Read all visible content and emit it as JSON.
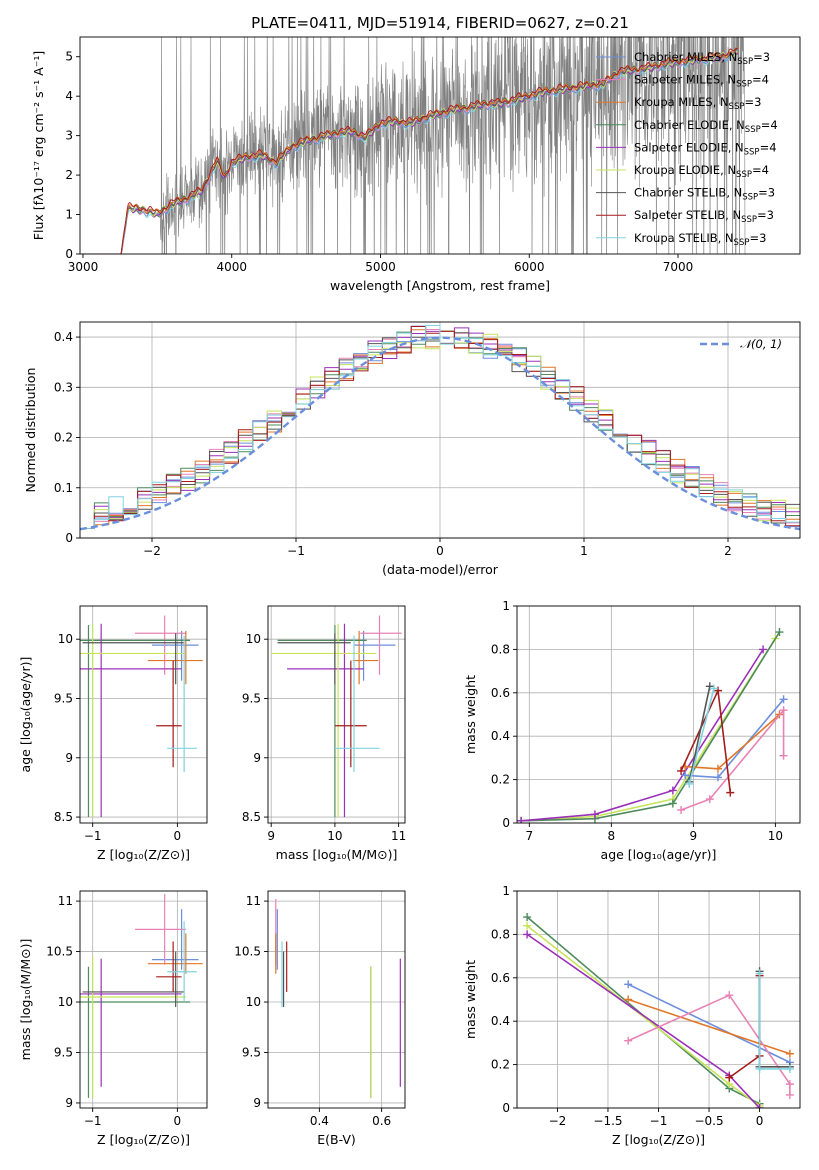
{
  "figure": {
    "title": "PLATE=0411, MJD=51914, FIBERID=0627, z=0.21"
  },
  "colors": {
    "Chabrier MILES": "#6d8fdc",
    "Salpeter MILES": "#e882b4",
    "Kroupa MILES": "#e0772a",
    "Chabrier ELODIE": "#4d8a5c",
    "Salpeter ELODIE": "#9b30b8",
    "Kroupa ELODIE": "#c6e35a",
    "Chabrier STELIB": "#555555",
    "Salpeter STELIB": "#a51c1c",
    "Kroupa STELIB": "#7fd3e0",
    "observed": "#808080",
    "normal": "#6a8fdc"
  },
  "chart_data": [
    {
      "id": "spectrum",
      "type": "line",
      "xlabel": "wavelength [Angstrom, rest frame]",
      "ylabel": "Flux [fλ10⁻¹⁷ erg cm⁻² s⁻¹ A⁻¹]",
      "xlim": [
        2980,
        7820
      ],
      "ylim": [
        0,
        5.5
      ],
      "xticks": [
        3000,
        4000,
        5000,
        6000,
        7000
      ],
      "yticks": [
        0,
        1,
        2,
        3,
        4,
        5
      ],
      "grid": false,
      "legend_position": "right",
      "legend": [
        {
          "label": "Chabrier MILES, N",
          "sub": "SSP",
          "suffix": "=3"
        },
        {
          "label": "Salpeter MILES, N",
          "sub": "SSP",
          "suffix": "=4"
        },
        {
          "label": "Kroupa MILES, N",
          "sub": "SSP",
          "suffix": "=3"
        },
        {
          "label": "Chabrier ELODIE, N",
          "sub": "SSP",
          "suffix": "=4"
        },
        {
          "label": "Salpeter ELODIE, N",
          "sub": "SSP",
          "suffix": "=4"
        },
        {
          "label": "Kroupa ELODIE, N",
          "sub": "SSP",
          "suffix": "=4"
        },
        {
          "label": "Chabrier STELIB, N",
          "sub": "SSP",
          "suffix": "=3"
        },
        {
          "label": "Salpeter STELIB, N",
          "sub": "SSP",
          "suffix": "=3"
        },
        {
          "label": "Kroupa STELIB, N",
          "sub": "SSP",
          "suffix": "=3"
        }
      ],
      "model_continuum": {
        "x": [
          3260,
          3300,
          3400,
          3500,
          3600,
          3700,
          3800,
          3900,
          3950,
          4000,
          4100,
          4200,
          4300,
          4400,
          4500,
          4600,
          4700,
          4800,
          4900,
          5000,
          5100,
          5200,
          5300,
          5400,
          5500,
          5600,
          5700,
          5800,
          5900,
          6000,
          6100,
          6200,
          6300,
          6400,
          6500,
          6600,
          6700,
          6800,
          6900,
          7000,
          7100,
          7200,
          7300,
          7400,
          7500
        ],
        "y": [
          0.05,
          1.15,
          1.12,
          1.0,
          1.25,
          1.4,
          1.6,
          2.35,
          1.9,
          2.3,
          2.45,
          2.5,
          2.3,
          2.7,
          2.85,
          2.95,
          3.05,
          3.1,
          2.95,
          3.3,
          3.35,
          3.3,
          3.45,
          3.55,
          3.65,
          3.7,
          3.8,
          3.8,
          3.9,
          4.0,
          4.1,
          4.15,
          4.2,
          4.25,
          4.3,
          4.6,
          4.65,
          4.7,
          4.8,
          4.85,
          4.9,
          4.95,
          5.0,
          5.1,
          5.15
        ]
      },
      "observed_range": [
        3520,
        7450
      ]
    },
    {
      "id": "residuals",
      "type": "bar",
      "xlabel": "(data-model)/error",
      "ylabel": "Normed distribution",
      "xlim": [
        -2.5,
        2.5
      ],
      "ylim": [
        0,
        0.43
      ],
      "xticks": [
        -2,
        -1,
        0,
        1,
        2
      ],
      "yticks": [
        0.0,
        0.1,
        0.2,
        0.3,
        0.4
      ],
      "grid": true,
      "legend_position": "top-right",
      "bin_width": 0.1,
      "reference_curve": {
        "label": "𝒩(0, 1)",
        "mean": 0,
        "sigma": 1
      }
    },
    {
      "id": "age-vs-Z",
      "type": "scatter",
      "xlabel": "Z [log₁₀(Z/Z⊙)]",
      "ylabel": "age  [log₁₀(age/yr)]",
      "xlim": [
        -1.15,
        0.35
      ],
      "ylim": [
        8.45,
        10.28
      ],
      "xticks": [
        -1,
        0
      ],
      "yticks": [
        8.5,
        9.0,
        9.5,
        10.0
      ],
      "grid": true,
      "points": [
        {
          "model": "Chabrier MILES",
          "x": 0.05,
          "y": 9.95,
          "xerr": [
            0.35,
            0.2
          ],
          "yerr": [
            0.3,
            0.12
          ]
        },
        {
          "model": "Salpeter MILES",
          "x": -0.15,
          "y": 10.05,
          "xerr": [
            0.35,
            0.25
          ],
          "yerr": [
            0.35,
            0.15
          ]
        },
        {
          "model": "Kroupa MILES",
          "x": 0.1,
          "y": 9.82,
          "xerr": [
            0.45,
            0.2
          ],
          "yerr": [
            0.2,
            0.25
          ]
        },
        {
          "model": "Chabrier ELODIE",
          "x": -1.05,
          "y": 9.99,
          "xerr": [
            0.1,
            1.2
          ],
          "yerr": [
            1.49,
            0.13
          ]
        },
        {
          "model": "Salpeter ELODIE",
          "x": -0.9,
          "y": 9.75,
          "xerr": [
            0.25,
            0.95
          ],
          "yerr": [
            1.25,
            0.38
          ]
        },
        {
          "model": "Kroupa ELODIE",
          "x": -1.0,
          "y": 9.88,
          "xerr": [
            0.15,
            1.1
          ],
          "yerr": [
            1.38,
            0.25
          ]
        },
        {
          "model": "Chabrier STELIB",
          "x": -0.02,
          "y": 9.97,
          "xerr": [
            1.1,
            0.1
          ],
          "yerr": [
            0.35,
            0.08
          ]
        },
        {
          "model": "Salpeter STELIB",
          "x": -0.05,
          "y": 9.27,
          "xerr": [
            0.2,
            0.1
          ],
          "yerr": [
            0.35,
            0.55
          ]
        },
        {
          "model": "Kroupa STELIB",
          "x": 0.08,
          "y": 9.08,
          "xerr": [
            0.2,
            0.15
          ],
          "yerr": [
            0.2,
            0.95
          ]
        }
      ]
    },
    {
      "id": "age-vs-mass",
      "type": "scatter",
      "xlabel": "mass [log₁₀(M/M⊙)]",
      "ylabel": "",
      "xlim": [
        8.95,
        11.1
      ],
      "ylim": [
        8.45,
        10.28
      ],
      "xticks": [
        9,
        10,
        11
      ],
      "yticks": [
        8.5,
        9.0,
        9.5,
        10.0
      ],
      "grid": true,
      "points": [
        {
          "model": "Chabrier MILES",
          "x": 10.45,
          "y": 9.95,
          "xerr": [
            0.15,
            0.5
          ],
          "yerr": [
            0.3,
            0.12
          ]
        },
        {
          "model": "Salpeter MILES",
          "x": 10.7,
          "y": 10.05,
          "xerr": [
            0.3,
            0.35
          ],
          "yerr": [
            0.35,
            0.15
          ]
        },
        {
          "model": "Kroupa MILES",
          "x": 10.38,
          "y": 9.82,
          "xerr": [
            0.1,
            0.3
          ],
          "yerr": [
            0.2,
            0.25
          ]
        },
        {
          "model": "Chabrier ELODIE",
          "x": 10.0,
          "y": 9.99,
          "xerr": [
            0.9,
            0.5
          ],
          "yerr": [
            1.49,
            0.13
          ]
        },
        {
          "model": "Salpeter ELODIE",
          "x": 10.15,
          "y": 9.75,
          "xerr": [
            0.9,
            0.3
          ],
          "yerr": [
            1.25,
            0.38
          ]
        },
        {
          "model": "Kroupa ELODIE",
          "x": 10.05,
          "y": 9.88,
          "xerr": [
            1.05,
            0.6
          ],
          "yerr": [
            1.38,
            0.25
          ]
        },
        {
          "model": "Chabrier STELIB",
          "x": 10.0,
          "y": 9.97,
          "xerr": [
            0.9,
            0.25
          ],
          "yerr": [
            0.35,
            0.08
          ]
        },
        {
          "model": "Salpeter STELIB",
          "x": 10.25,
          "y": 9.27,
          "xerr": [
            0.25,
            0.25
          ],
          "yerr": [
            0.35,
            0.55
          ]
        },
        {
          "model": "Kroupa STELIB",
          "x": 10.3,
          "y": 9.08,
          "xerr": [
            0.3,
            0.4
          ],
          "yerr": [
            0.2,
            0.95
          ]
        }
      ]
    },
    {
      "id": "mass-weight-vs-age",
      "type": "line",
      "xlabel": "age  [log₁₀(age/yr)]",
      "ylabel": "mass weight",
      "xlim": [
        6.85,
        10.3
      ],
      "ylim": [
        0,
        1.0
      ],
      "xticks": [
        7,
        8,
        9,
        10
      ],
      "yticks": [
        0.0,
        0.2,
        0.4,
        0.6,
        0.8,
        1.0
      ],
      "grid": true,
      "series": [
        {
          "model": "Kroupa ELODIE",
          "x": [
            6.9,
            7.8,
            8.75,
            10.0
          ],
          "y": [
            0.01,
            0.03,
            0.11,
            0.85
          ]
        },
        {
          "model": "Chabrier ELODIE",
          "x": [
            6.9,
            7.8,
            8.75,
            10.05
          ],
          "y": [
            0.01,
            0.02,
            0.09,
            0.88
          ]
        },
        {
          "model": "Salpeter ELODIE",
          "x": [
            6.9,
            7.8,
            8.75,
            9.85
          ],
          "y": [
            0.01,
            0.04,
            0.15,
            0.8
          ]
        },
        {
          "model": "Chabrier MILES",
          "x": [
            8.9,
            9.3,
            10.1
          ],
          "y": [
            0.22,
            0.21,
            0.57
          ]
        },
        {
          "model": "Kroupa MILES",
          "x": [
            8.9,
            9.3,
            10.05
          ],
          "y": [
            0.26,
            0.25,
            0.5
          ]
        },
        {
          "model": "Salpeter MILES",
          "x": [
            8.85,
            9.2,
            10.1,
            10.1
          ],
          "y": [
            0.06,
            0.11,
            0.52,
            0.31
          ]
        },
        {
          "model": "Salpeter STELIB",
          "x": [
            8.85,
            9.3,
            9.45
          ],
          "y": [
            0.24,
            0.61,
            0.14
          ]
        },
        {
          "model": "Chabrier STELIB",
          "x": [
            8.95,
            9.2
          ],
          "y": [
            0.19,
            0.63
          ]
        },
        {
          "model": "Kroupa STELIB",
          "x": [
            8.95,
            9.25
          ],
          "y": [
            0.18,
            0.62
          ]
        }
      ]
    },
    {
      "id": "mass-vs-Z",
      "type": "scatter",
      "xlabel": "Z [log₁₀(Z/Z⊙)]",
      "ylabel": "mass [log₁₀(M/M⊙)]",
      "xlim": [
        -1.15,
        0.35
      ],
      "ylim": [
        8.95,
        11.1
      ],
      "xticks": [
        -1,
        0
      ],
      "yticks": [
        9.0,
        9.5,
        10.0,
        10.5,
        11.0
      ],
      "grid": true,
      "points": [
        {
          "model": "Chabrier MILES",
          "x": 0.05,
          "y": 10.42,
          "xerr": [
            0.35,
            0.2
          ],
          "yerr": [
            0.1,
            0.5
          ]
        },
        {
          "model": "Salpeter MILES",
          "x": -0.15,
          "y": 10.72,
          "xerr": [
            0.35,
            0.25
          ],
          "yerr": [
            0.35,
            0.35
          ]
        },
        {
          "model": "Kroupa MILES",
          "x": 0.1,
          "y": 10.38,
          "xerr": [
            0.45,
            0.2
          ],
          "yerr": [
            0.1,
            0.3
          ]
        },
        {
          "model": "Chabrier ELODIE",
          "x": -1.05,
          "y": 10.0,
          "xerr": [
            0.1,
            1.2
          ],
          "yerr": [
            0.95,
            0.35
          ]
        },
        {
          "model": "Salpeter ELODIE",
          "x": -0.9,
          "y": 10.08,
          "xerr": [
            0.25,
            0.95
          ],
          "yerr": [
            0.92,
            0.35
          ]
        },
        {
          "model": "Kroupa ELODIE",
          "x": -1.0,
          "y": 10.05,
          "xerr": [
            0.15,
            1.1
          ],
          "yerr": [
            1.0,
            0.4
          ]
        },
        {
          "model": "Chabrier STELIB",
          "x": -0.02,
          "y": 10.1,
          "xerr": [
            1.1,
            0.1
          ],
          "yerr": [
            0.15,
            0.4
          ]
        },
        {
          "model": "Salpeter STELIB",
          "x": -0.05,
          "y": 10.25,
          "xerr": [
            0.2,
            0.1
          ],
          "yerr": [
            0.15,
            0.35
          ]
        },
        {
          "model": "Kroupa STELIB",
          "x": 0.08,
          "y": 10.3,
          "xerr": [
            0.2,
            0.15
          ],
          "yerr": [
            0.3,
            0.5
          ]
        }
      ]
    },
    {
      "id": "mass-vs-EBV",
      "type": "scatter",
      "xlabel": "E(B-V)",
      "ylabel": "",
      "xlim": [
        0.235,
        0.675
      ],
      "ylim": [
        8.95,
        11.1
      ],
      "xticks": [
        0.4,
        0.6
      ],
      "yticks": [
        9.0,
        9.5,
        10.0,
        10.5,
        11.0
      ],
      "grid": true,
      "points": [
        {
          "model": "Chabrier MILES",
          "x": 0.265,
          "y": 10.42,
          "xerr": [
            0,
            0
          ],
          "yerr": [
            0.1,
            0.5
          ]
        },
        {
          "model": "Salpeter MILES",
          "x": 0.26,
          "y": 10.72,
          "xerr": [
            0,
            0
          ],
          "yerr": [
            0.35,
            0.3
          ]
        },
        {
          "model": "Kroupa MILES",
          "x": 0.26,
          "y": 10.38,
          "xerr": [
            0,
            0
          ],
          "yerr": [
            0.1,
            0.3
          ]
        },
        {
          "model": "Chabrier ELODIE",
          "x": 0.565,
          "y": 10.0,
          "xerr": [
            0,
            0
          ],
          "yerr": [
            0.95,
            0.35
          ]
        },
        {
          "model": "Salpeter ELODIE",
          "x": 0.66,
          "y": 10.08,
          "xerr": [
            0,
            0
          ],
          "yerr": [
            0.92,
            0.35
          ]
        },
        {
          "model": "Kroupa ELODIE",
          "x": 0.565,
          "y": 10.05,
          "xerr": [
            0,
            0
          ],
          "yerr": [
            1.0,
            0.3
          ]
        },
        {
          "model": "Chabrier STELIB",
          "x": 0.285,
          "y": 10.1,
          "xerr": [
            0,
            0
          ],
          "yerr": [
            0.15,
            0.4
          ]
        },
        {
          "model": "Salpeter STELIB",
          "x": 0.295,
          "y": 10.3,
          "xerr": [
            0,
            0
          ],
          "yerr": [
            0.2,
            0.3
          ]
        },
        {
          "model": "Kroupa STELIB",
          "x": 0.28,
          "y": 10.3,
          "xerr": [
            0,
            0
          ],
          "yerr": [
            0.35,
            0.3
          ]
        }
      ]
    },
    {
      "id": "mass-weight-vs-Z",
      "type": "line",
      "xlabel": "Z [log₁₀(Z/Z⊙)]",
      "ylabel": "mass weight",
      "xlim": [
        -2.4,
        0.4
      ],
      "ylim": [
        0,
        1.0
      ],
      "xticks": [
        -2.0,
        -1.5,
        -1.0,
        -0.5,
        0.0
      ],
      "yticks": [
        0.0,
        0.2,
        0.4,
        0.6,
        0.8,
        1.0
      ],
      "grid": true,
      "series": [
        {
          "model": "Chabrier ELODIE",
          "x": [
            -2.3,
            -0.3,
            0.0
          ],
          "y": [
            0.88,
            0.09,
            0.02
          ]
        },
        {
          "model": "Kroupa ELODIE",
          "x": [
            -2.3,
            -0.3,
            0.0
          ],
          "y": [
            0.84,
            0.11,
            0.01
          ]
        },
        {
          "model": "Salpeter ELODIE",
          "x": [
            -2.3,
            -0.3,
            0.0
          ],
          "y": [
            0.8,
            0.15,
            0.0
          ]
        },
        {
          "model": "Chabrier MILES",
          "x": [
            -1.3,
            0.3
          ],
          "y": [
            0.57,
            0.21
          ]
        },
        {
          "model": "Kroupa MILES",
          "x": [
            -1.3,
            0.3
          ],
          "y": [
            0.5,
            0.25
          ]
        },
        {
          "model": "Salpeter MILES",
          "x": [
            -1.3,
            -0.3,
            0.3,
            0.3
          ],
          "y": [
            0.31,
            0.52,
            0.11,
            0.06
          ]
        },
        {
          "model": "Salpeter STELIB",
          "x": [
            -0.3,
            0.0,
            0.0
          ],
          "y": [
            0.14,
            0.24,
            0.61
          ]
        },
        {
          "model": "Chabrier STELIB",
          "x": [
            0.0,
            0.0,
            0.3
          ],
          "y": [
            0.63,
            0.19,
            0.19
          ]
        },
        {
          "model": "Kroupa STELIB",
          "x": [
            0.0,
            0.0,
            0.3
          ],
          "y": [
            0.62,
            0.18,
            0.18
          ]
        }
      ]
    }
  ]
}
